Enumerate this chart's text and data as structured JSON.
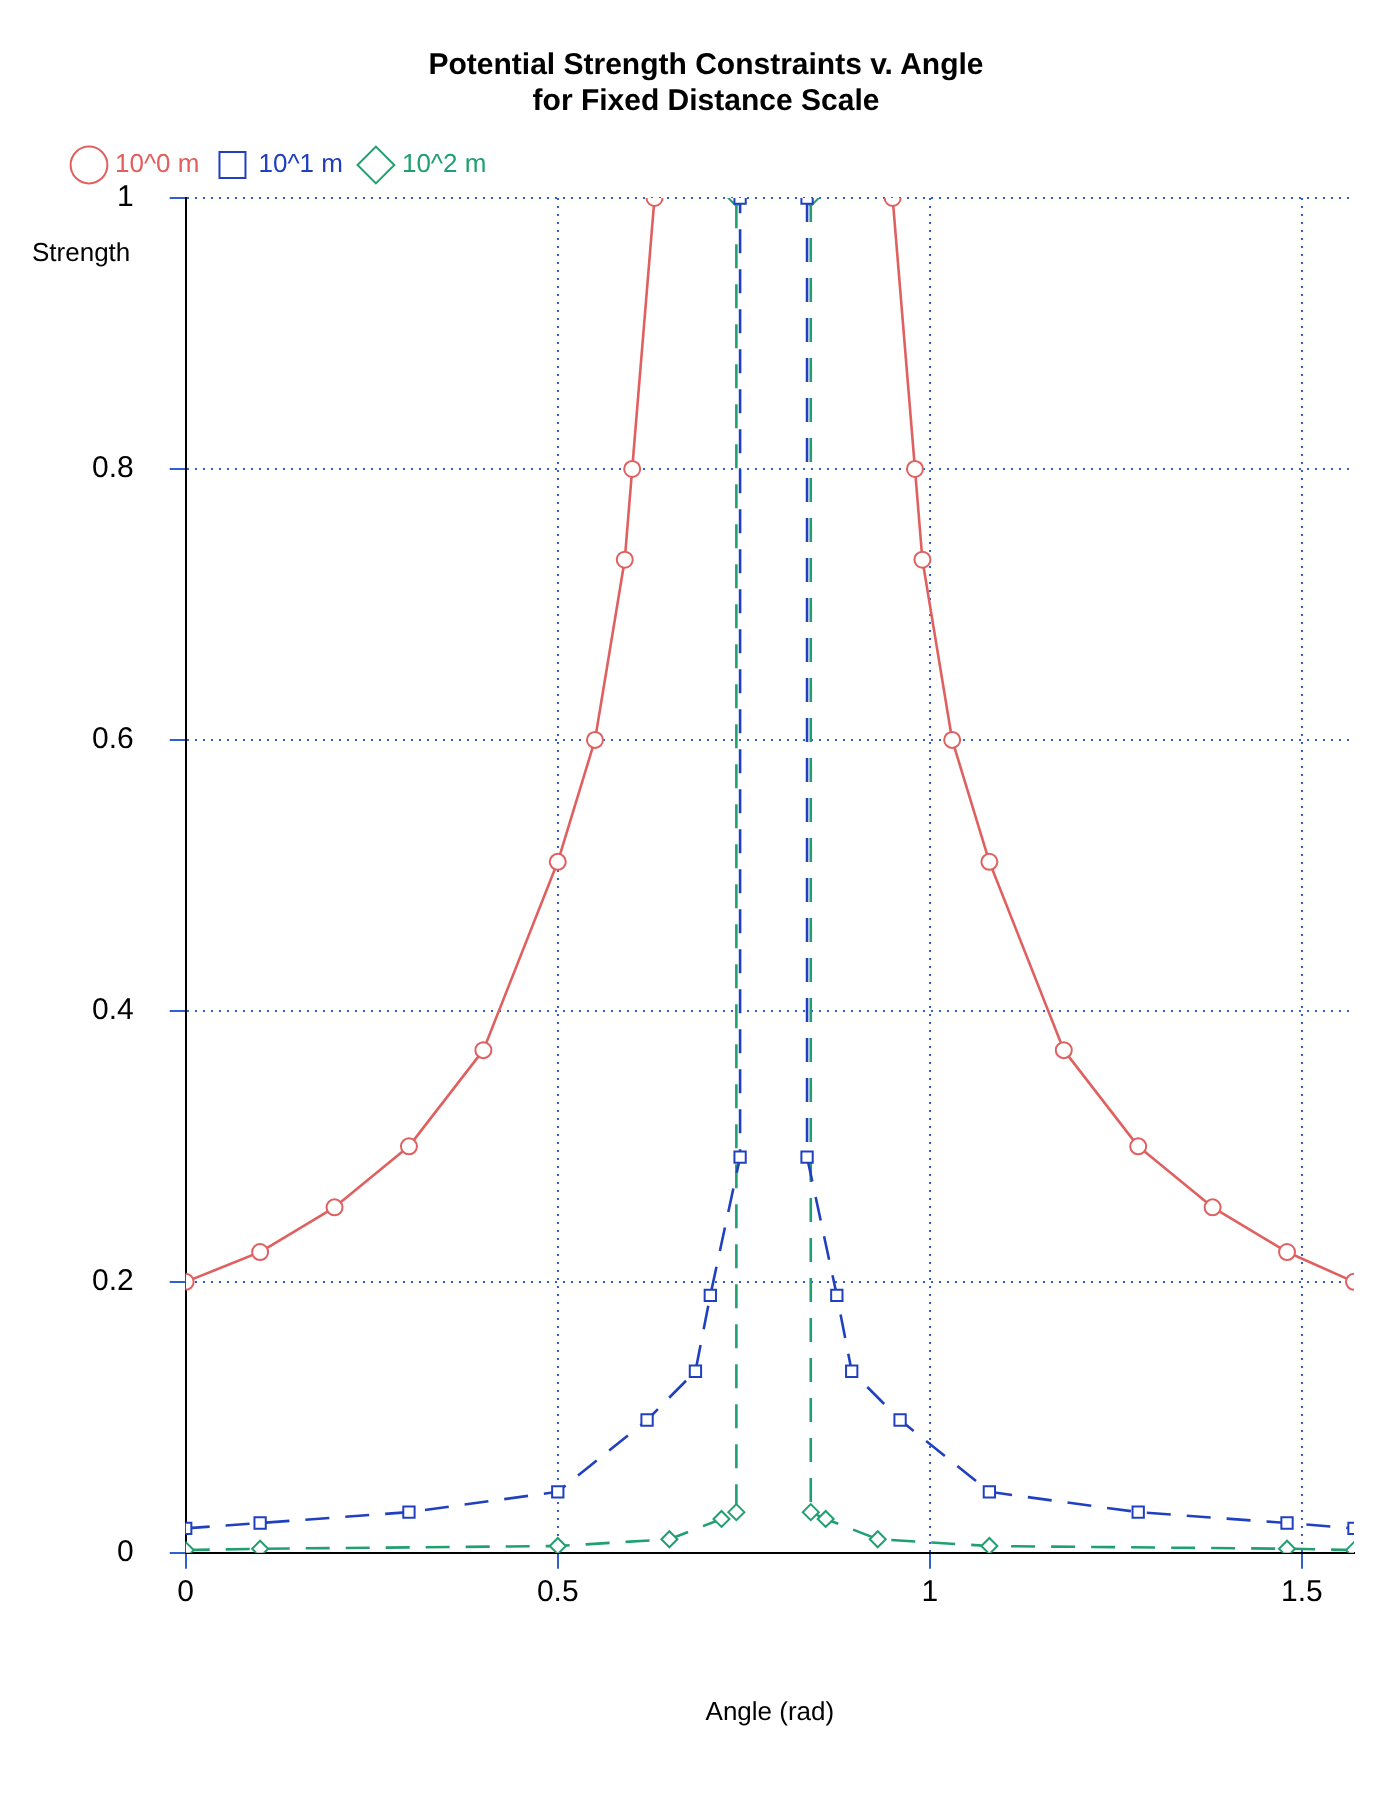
{
  "chart_data": {
    "type": "line",
    "title": "Potential Strength Constraints v. Angle\nfor Fixed Distance Scale",
    "xlabel": "Angle (rad)",
    "ylabel": "Strength",
    "xlim": [
      0,
      1.57
    ],
    "xticks": [
      0,
      0.5,
      1,
      1.5
    ],
    "ylim": [
      0,
      1
    ],
    "yticks": [
      0,
      0.2,
      0.4,
      0.6,
      0.8,
      1
    ],
    "grid": true,
    "legend": "top left",
    "series": [
      {
        "name": "10^0 m",
        "color": "#e06060",
        "marker": "circle",
        "line_style": "solid",
        "x": [
          0,
          0.1,
          0.2,
          0.3,
          0.4,
          0.5,
          0.55,
          0.59,
          0.6,
          0.63,
          0.7,
          0.95,
          0.98,
          0.99,
          1.03,
          1.08,
          1.18,
          1.28,
          1.38,
          1.48,
          1.57
        ],
        "values": [
          0.2,
          0.222,
          0.255,
          0.3,
          0.371,
          0.51,
          0.6,
          0.733,
          0.8,
          1,
          null,
          1,
          0.8,
          0.733,
          0.6,
          0.51,
          0.371,
          0.3,
          0.255,
          0.222,
          0.2
        ]
      },
      {
        "name": "10^1 m",
        "color": "#2040c0",
        "marker": "square",
        "line_style": "dashed",
        "x": [
          0,
          0.1,
          0.3,
          0.5,
          0.62,
          0.685,
          0.705,
          0.745,
          0.745,
          0.79,
          0.835,
          0.835,
          0.875,
          0.895,
          0.96,
          1.08,
          1.28,
          1.48,
          1.57
        ],
        "values": [
          0.018,
          0.022,
          0.03,
          0.045,
          0.098,
          0.134,
          0.19,
          0.292,
          1,
          null,
          1,
          0.292,
          0.19,
          0.134,
          0.098,
          0.045,
          0.03,
          0.022,
          0.018
        ]
      },
      {
        "name": "10^2 m",
        "color": "#20a070",
        "marker": "diamond",
        "line_style": "dashed",
        "x": [
          0,
          0.1,
          0.5,
          0.65,
          0.72,
          0.74,
          0.74,
          0.79,
          0.84,
          0.84,
          0.86,
          0.93,
          1.08,
          1.48,
          1.57
        ],
        "values": [
          0.002,
          0.003,
          0.005,
          0.01,
          0.025,
          0.03,
          1,
          null,
          1,
          0.03,
          0.025,
          0.01,
          0.005,
          0.003,
          0.002
        ]
      }
    ]
  }
}
